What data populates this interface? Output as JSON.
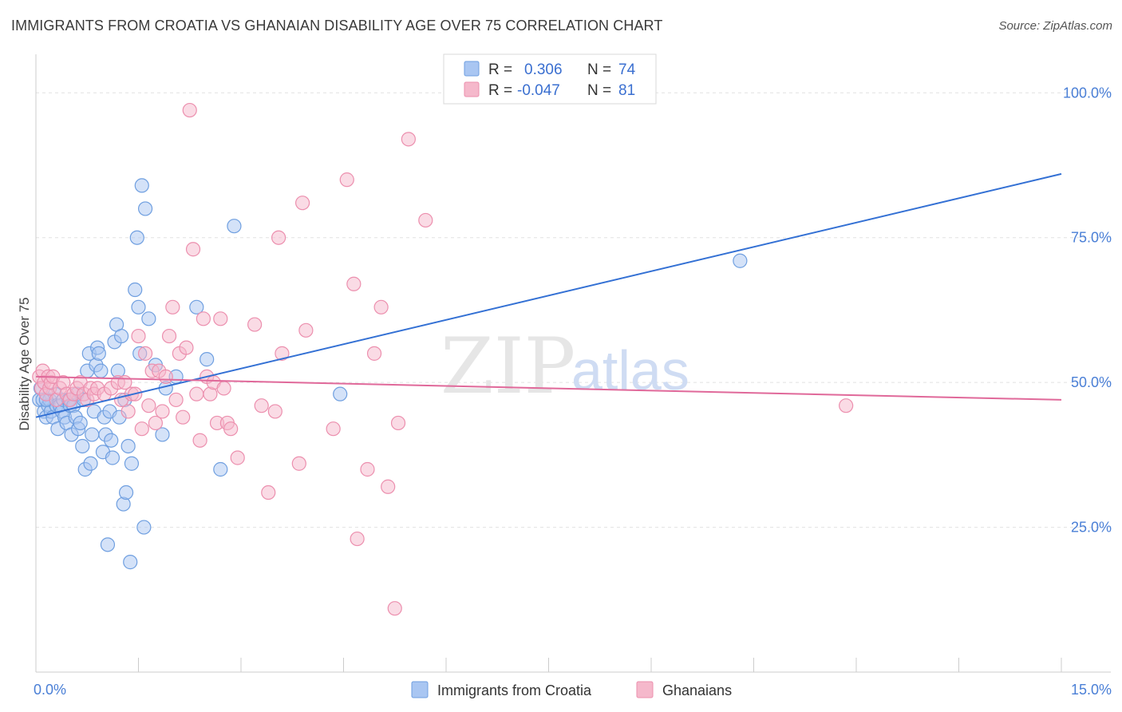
{
  "title": "IMMIGRANTS FROM CROATIA VS GHANAIAN DISABILITY AGE OVER 75 CORRELATION CHART",
  "source": "Source: ZipAtlas.com",
  "watermark": {
    "zip": "ZIP",
    "atlas": "atlas"
  },
  "legend": {
    "rows": [
      {
        "r_label": "R =",
        "r_value": "0.306",
        "n_label": "N =",
        "n_value": "74",
        "color": "#a9c6f2"
      },
      {
        "r_label": "R =",
        "r_value": "-0.047",
        "n_label": "N =",
        "n_value": "81",
        "color": "#f5b8cb"
      }
    ]
  },
  "bottom_legend": [
    {
      "label": "Immigrants from Croatia",
      "color": "#a9c6f2"
    },
    {
      "label": "Ghanaians",
      "color": "#f5b8cb"
    }
  ],
  "colors": {
    "blue_fill": "#a9c6f2",
    "blue_stroke": "#6f9fe0",
    "blue_line": "#3370d4",
    "pink_fill": "#f5b8cb",
    "pink_stroke": "#ec8fae",
    "pink_line": "#e0699a",
    "tick_text": "#4a7fd6",
    "grid": "#e2e2e2"
  },
  "chart_data": {
    "type": "scatter",
    "title": "IMMIGRANTS FROM CROATIA VS GHANAIAN DISABILITY AGE OVER 75 CORRELATION CHART",
    "xlabel": "",
    "ylabel": "Disability Age Over 75",
    "xlim": [
      0,
      15
    ],
    "ylim": [
      0,
      105
    ],
    "x_ticks": [
      {
        "value": 0,
        "label": "0.0%"
      },
      {
        "value": 15,
        "label": "15.0%"
      }
    ],
    "y_ticks": [
      {
        "value": 25,
        "label": "25.0%"
      },
      {
        "value": 50,
        "label": "50.0%"
      },
      {
        "value": 75,
        "label": "75.0%"
      },
      {
        "value": 100,
        "label": "100.0%"
      }
    ],
    "grid": true,
    "legend_position": "top-center",
    "series": [
      {
        "name": "Immigrants from Croatia",
        "color": "#a9c6f2",
        "trend": {
          "x": [
            0,
            15
          ],
          "y": [
            44,
            86
          ]
        },
        "points": [
          [
            0.05,
            47
          ],
          [
            0.07,
            49
          ],
          [
            0.1,
            47
          ],
          [
            0.12,
            45
          ],
          [
            0.15,
            44
          ],
          [
            0.18,
            46
          ],
          [
            0.2,
            47
          ],
          [
            0.22,
            45
          ],
          [
            0.25,
            44
          ],
          [
            0.28,
            48
          ],
          [
            0.3,
            46
          ],
          [
            0.32,
            42
          ],
          [
            0.35,
            46
          ],
          [
            0.38,
            45
          ],
          [
            0.4,
            47
          ],
          [
            0.42,
            44
          ],
          [
            0.45,
            43
          ],
          [
            0.48,
            47
          ],
          [
            0.5,
            46
          ],
          [
            0.52,
            41
          ],
          [
            0.55,
            46
          ],
          [
            0.58,
            44
          ],
          [
            0.6,
            48
          ],
          [
            0.62,
            42
          ],
          [
            0.65,
            43
          ],
          [
            0.68,
            39
          ],
          [
            0.7,
            47
          ],
          [
            0.72,
            35
          ],
          [
            0.75,
            52
          ],
          [
            0.78,
            55
          ],
          [
            0.8,
            36
          ],
          [
            0.82,
            41
          ],
          [
            0.85,
            45
          ],
          [
            0.88,
            53
          ],
          [
            0.9,
            56
          ],
          [
            0.92,
            55
          ],
          [
            0.95,
            52
          ],
          [
            0.98,
            38
          ],
          [
            1.0,
            44
          ],
          [
            1.02,
            41
          ],
          [
            1.05,
            22
          ],
          [
            1.08,
            45
          ],
          [
            1.1,
            40
          ],
          [
            1.12,
            37
          ],
          [
            1.15,
            57
          ],
          [
            1.18,
            60
          ],
          [
            1.2,
            52
          ],
          [
            1.22,
            44
          ],
          [
            1.25,
            58
          ],
          [
            1.28,
            29
          ],
          [
            1.3,
            47
          ],
          [
            1.32,
            31
          ],
          [
            1.35,
            39
          ],
          [
            1.38,
            19
          ],
          [
            1.4,
            36
          ],
          [
            1.45,
            66
          ],
          [
            1.48,
            75
          ],
          [
            1.5,
            63
          ],
          [
            1.52,
            55
          ],
          [
            1.55,
            84
          ],
          [
            1.58,
            25
          ],
          [
            1.6,
            80
          ],
          [
            1.65,
            61
          ],
          [
            1.75,
            53
          ],
          [
            1.85,
            41
          ],
          [
            1.9,
            49
          ],
          [
            2.05,
            51
          ],
          [
            2.35,
            63
          ],
          [
            2.5,
            54
          ],
          [
            2.7,
            35
          ],
          [
            2.9,
            77
          ],
          [
            4.45,
            48
          ],
          [
            10.3,
            71
          ],
          [
            0.15,
            47
          ]
        ]
      },
      {
        "name": "Ghanaians",
        "color": "#f5b8cb",
        "trend": {
          "x": [
            0,
            15
          ],
          "y": [
            51,
            47
          ]
        },
        "points": [
          [
            0.05,
            51
          ],
          [
            0.08,
            49
          ],
          [
            0.1,
            52
          ],
          [
            0.12,
            50
          ],
          [
            0.15,
            48
          ],
          [
            0.18,
            51
          ],
          [
            0.2,
            49
          ],
          [
            0.22,
            50
          ],
          [
            0.25,
            51
          ],
          [
            0.3,
            47
          ],
          [
            0.35,
            49
          ],
          [
            0.4,
            50
          ],
          [
            0.45,
            48
          ],
          [
            0.5,
            47
          ],
          [
            0.55,
            48
          ],
          [
            0.6,
            49
          ],
          [
            0.65,
            50
          ],
          [
            0.7,
            48
          ],
          [
            0.75,
            47
          ],
          [
            0.8,
            49
          ],
          [
            0.85,
            48
          ],
          [
            0.9,
            49
          ],
          [
            1.0,
            48
          ],
          [
            1.1,
            49
          ],
          [
            1.2,
            50
          ],
          [
            1.25,
            47
          ],
          [
            1.3,
            50
          ],
          [
            1.35,
            45
          ],
          [
            1.4,
            48
          ],
          [
            1.45,
            48
          ],
          [
            1.5,
            58
          ],
          [
            1.55,
            42
          ],
          [
            1.6,
            55
          ],
          [
            1.65,
            46
          ],
          [
            1.7,
            52
          ],
          [
            1.75,
            43
          ],
          [
            1.8,
            52
          ],
          [
            1.85,
            45
          ],
          [
            1.9,
            51
          ],
          [
            1.95,
            58
          ],
          [
            2.0,
            63
          ],
          [
            2.05,
            47
          ],
          [
            2.1,
            55
          ],
          [
            2.15,
            44
          ],
          [
            2.2,
            56
          ],
          [
            2.25,
            97
          ],
          [
            2.3,
            73
          ],
          [
            2.35,
            48
          ],
          [
            2.4,
            40
          ],
          [
            2.45,
            61
          ],
          [
            2.5,
            51
          ],
          [
            2.55,
            48
          ],
          [
            2.6,
            50
          ],
          [
            2.65,
            43
          ],
          [
            2.7,
            61
          ],
          [
            2.75,
            49
          ],
          [
            2.8,
            43
          ],
          [
            2.85,
            42
          ],
          [
            2.95,
            37
          ],
          [
            3.2,
            60
          ],
          [
            3.3,
            46
          ],
          [
            3.4,
            31
          ],
          [
            3.5,
            45
          ],
          [
            3.55,
            75
          ],
          [
            3.6,
            55
          ],
          [
            3.85,
            36
          ],
          [
            3.9,
            81
          ],
          [
            3.95,
            59
          ],
          [
            4.35,
            42
          ],
          [
            4.55,
            85
          ],
          [
            4.65,
            67
          ],
          [
            4.7,
            23
          ],
          [
            4.85,
            35
          ],
          [
            4.95,
            55
          ],
          [
            5.05,
            63
          ],
          [
            5.15,
            32
          ],
          [
            5.25,
            11
          ],
          [
            5.3,
            43
          ],
          [
            5.45,
            92
          ],
          [
            5.7,
            78
          ],
          [
            11.85,
            46
          ]
        ]
      }
    ]
  }
}
